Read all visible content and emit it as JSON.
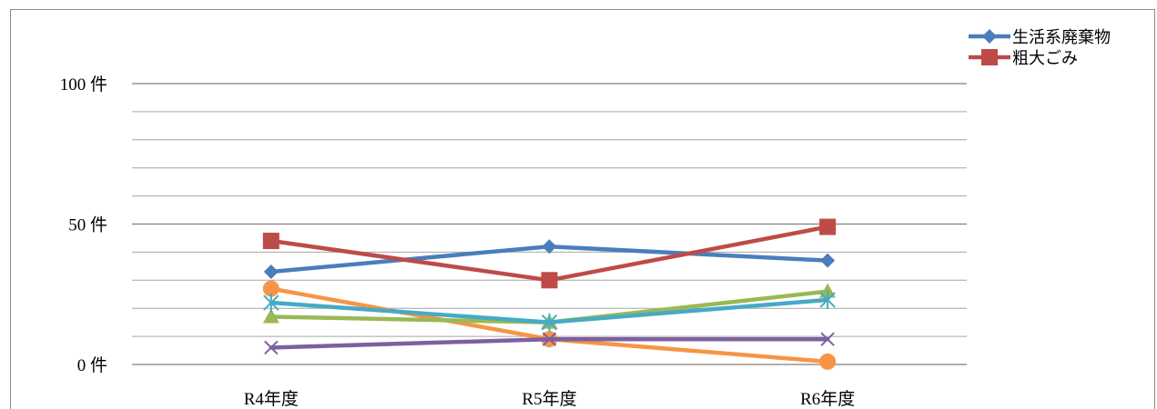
{
  "chart_data": {
    "type": "line",
    "categories": [
      "R4年度",
      "R5年度",
      "R6年度"
    ],
    "y_tick_labels": [
      "100 件",
      "50 件",
      "0 件"
    ],
    "y_ticks": [
      100,
      50,
      0
    ],
    "ylim": [
      0,
      100
    ],
    "y_minor_step": 10,
    "grid": true,
    "legend_position": "top-right",
    "series": [
      {
        "name": "生活系廃棄物",
        "values": [
          33,
          42,
          37
        ],
        "color": "#4a7ebb",
        "marker": "diamond"
      },
      {
        "name": "粗大ごみ",
        "values": [
          44,
          30,
          49
        ],
        "color": "#be4b48",
        "marker": "square"
      },
      {
        "values": [
          17,
          15,
          26
        ],
        "color": "#98b954",
        "marker": "triangle"
      },
      {
        "values": [
          6,
          9,
          9
        ],
        "color": "#7d60a0",
        "marker": "x"
      },
      {
        "values": [
          22,
          15,
          23
        ],
        "color": "#46aac5",
        "marker": "star"
      },
      {
        "values": [
          27,
          9,
          1
        ],
        "color": "#f69546",
        "marker": "circle"
      }
    ]
  }
}
